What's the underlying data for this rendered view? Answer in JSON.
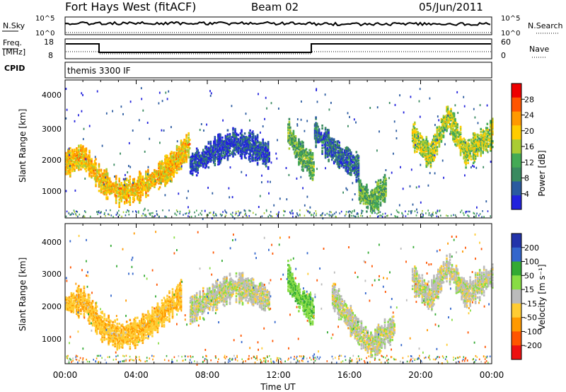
{
  "header": {
    "station": "Fort Hays West (fitACF)",
    "beam": "Beam 02",
    "date": "05/Jun/2011"
  },
  "summary": {
    "nsky_label": "N.Sky",
    "nsky_ticks": [
      "10^5",
      "10^0"
    ],
    "nsearch_label": "N.Search",
    "freq_label": "Freq.",
    "freq_unit": "[MHz]",
    "freq_ticks": [
      "18",
      "8"
    ],
    "nave_ticks": [
      "60",
      "0"
    ],
    "nave_label": "Nave",
    "cpid_label": "CPID",
    "cpid_text": "themis 3300 IF"
  },
  "axes": {
    "xlabel": "Time UT",
    "x_ticks": [
      "00:00",
      "04:00",
      "08:00",
      "12:00",
      "16:00",
      "20:00",
      "00:00"
    ],
    "ylabel": "Slant Range [km]",
    "y_ticks": [
      "4000",
      "3000",
      "2000",
      "1000"
    ]
  },
  "colorbars": {
    "power": {
      "label": "Power [dB]",
      "ticks": [
        "28",
        "24",
        "20",
        "16",
        "12",
        "8",
        "4"
      ],
      "colors": [
        "#2222dd",
        "#2a5aa0",
        "#3a8a60",
        "#44aa55",
        "#aacc33",
        "#ffcc00",
        "#ff9900",
        "#ff5500",
        "#ee0000"
      ]
    },
    "velocity": {
      "label": "Velocity [m s⁻¹]",
      "ticks": [
        "200",
        "100",
        "50",
        "15",
        "-15",
        "-50",
        "-100",
        "-200"
      ],
      "colors": [
        "#2233aa",
        "#3366cc",
        "#33aa33",
        "#88dd44",
        "#bbbbbb",
        "#ffcc33",
        "#ff9900",
        "#ff5500",
        "#ee1111"
      ]
    }
  },
  "chart_data": [
    {
      "type": "heatmap",
      "name": "power",
      "x_unit": "hours UT",
      "y_unit": "km",
      "xlim": [
        0,
        24
      ],
      "ylim": [
        180,
        4600
      ],
      "features": [
        {
          "t0": 0.0,
          "t1": 7.0,
          "points": [
            [
              0.0,
              2000
            ],
            [
              1.0,
              2200
            ],
            [
              2.0,
              1400
            ],
            [
              3.0,
              1050
            ],
            [
              4.0,
              1150
            ],
            [
              5.0,
              1500
            ],
            [
              6.0,
              1900
            ],
            [
              7.0,
              2600
            ]
          ],
          "power": 22
        },
        {
          "t0": 7.0,
          "t1": 11.5,
          "points": [
            [
              7.0,
              1900
            ],
            [
              8.5,
              2400
            ],
            [
              9.5,
              2650
            ],
            [
              10.5,
              2500
            ],
            [
              11.5,
              2200
            ]
          ],
          "power": 6
        },
        {
          "t0": 12.5,
          "t1": 14.0,
          "points": [
            [
              12.5,
              3000
            ],
            [
              13.0,
              2400
            ],
            [
              14.0,
              1800
            ]
          ],
          "power": 14
        },
        {
          "t0": 14.0,
          "t1": 16.5,
          "points": [
            [
              14.0,
              3000
            ],
            [
              15.0,
              2400
            ],
            [
              16.0,
              2000
            ],
            [
              16.5,
              1800
            ]
          ],
          "power": 8
        },
        {
          "t0": 16.5,
          "t1": 18.0,
          "points": [
            [
              16.5,
              1100
            ],
            [
              17.2,
              750
            ],
            [
              18.0,
              1200
            ]
          ],
          "power": 14
        },
        {
          "t0": 19.5,
          "t1": 24.0,
          "points": [
            [
              19.5,
              2900
            ],
            [
              20.5,
              2200
            ],
            [
              21.5,
              3500
            ],
            [
              22.5,
              2300
            ],
            [
              24.0,
              2900
            ]
          ],
          "power": 18
        }
      ]
    },
    {
      "type": "heatmap",
      "name": "velocity",
      "x_unit": "hours UT",
      "y_unit": "km",
      "xlim": [
        0,
        24
      ],
      "ylim": [
        180,
        4600
      ],
      "features": [
        {
          "t0": 0.0,
          "t1": 6.5,
          "points": [
            [
              0.0,
              2100
            ],
            [
              1.0,
              2200
            ],
            [
              2.0,
              1400
            ],
            [
              3.0,
              1100
            ],
            [
              4.0,
              1200
            ],
            [
              5.0,
              1600
            ],
            [
              6.5,
              2400
            ]
          ],
          "velocity": -40
        },
        {
          "t0": 7.0,
          "t1": 11.5,
          "points": [
            [
              7.0,
              1900
            ],
            [
              8.5,
              2400
            ],
            [
              9.5,
              2650
            ],
            [
              10.5,
              2500
            ],
            [
              11.5,
              2200
            ]
          ],
          "velocity": 0
        },
        {
          "t0": 12.5,
          "t1": 14.0,
          "points": [
            [
              12.5,
              3000
            ],
            [
              13.0,
              2400
            ],
            [
              14.0,
              1800
            ]
          ],
          "velocity": 40
        },
        {
          "t0": 15.0,
          "t1": 18.5,
          "points": [
            [
              15.0,
              2400
            ],
            [
              16.5,
              1200
            ],
            [
              17.2,
              800
            ],
            [
              18.5,
              1400
            ]
          ],
          "velocity": 0
        },
        {
          "t0": 19.5,
          "t1": 24.0,
          "points": [
            [
              19.5,
              2900
            ],
            [
              20.5,
              2300
            ],
            [
              21.5,
              3300
            ],
            [
              22.5,
              2400
            ],
            [
              24.0,
              3000
            ]
          ],
          "velocity": 0
        }
      ]
    }
  ]
}
